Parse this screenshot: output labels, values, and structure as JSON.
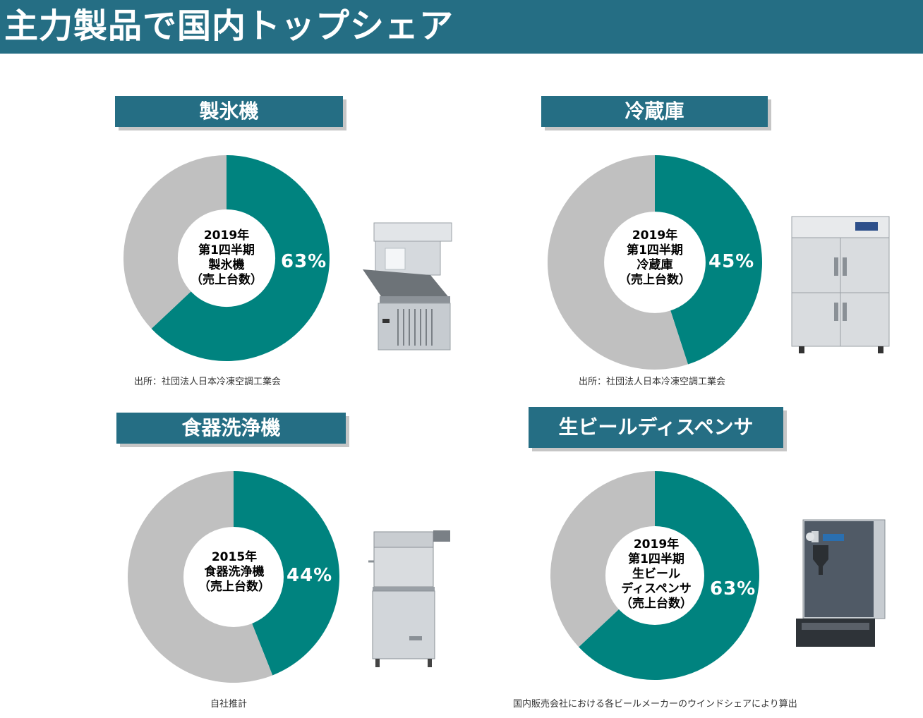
{
  "page_title": "主力製品で国内トップシェア",
  "colors": {
    "header": "#256e84",
    "share": "#00837f",
    "other": "#c0c0c0"
  },
  "sections": [
    {
      "label": "製氷機",
      "center_lines": [
        "2019年",
        "第1四半期",
        "製氷機",
        "（売上台数）"
      ],
      "percent_label": "63%",
      "source": "出所：社団法人日本冷凍空調工業会",
      "product_icon": "ice-machine-icon"
    },
    {
      "label": "冷蔵庫",
      "center_lines": [
        "2019年",
        "第1四半期",
        "冷蔵庫",
        "（売上台数）"
      ],
      "percent_label": "45%",
      "source": "出所：社団法人日本冷凍空調工業会",
      "product_icon": "refrigerator-icon"
    },
    {
      "label": "食器洗浄機",
      "center_lines": [
        "2015年",
        "食器洗浄機",
        "（売上台数）"
      ],
      "percent_label": "44%",
      "source": "自社推計",
      "product_icon": "dishwasher-icon"
    },
    {
      "label": "生ビールディスペンサ",
      "center_lines": [
        "2019年",
        "第1四半期",
        "生ビール",
        "ディスペンサ",
        "（売上台数）"
      ],
      "percent_label": "63%",
      "source": "国内販売会社における各ビールメーカーのウインドシェアにより算出",
      "product_icon": "beer-dispenser-icon"
    }
  ],
  "chart_data": [
    {
      "type": "pie",
      "title": "製氷機",
      "slices": [
        {
          "label": "63%",
          "value": 63
        },
        {
          "value": 37
        }
      ]
    },
    {
      "type": "pie",
      "title": "冷蔵庫",
      "slices": [
        {
          "label": "45%",
          "value": 45
        },
        {
          "value": 55
        }
      ]
    },
    {
      "type": "pie",
      "title": "食器洗浄機",
      "slices": [
        {
          "label": "44%",
          "value": 44
        },
        {
          "value": 56
        }
      ]
    },
    {
      "type": "pie",
      "title": "生ビールディスペンサ",
      "slices": [
        {
          "label": "63%",
          "value": 63
        },
        {
          "value": 37
        }
      ]
    }
  ]
}
